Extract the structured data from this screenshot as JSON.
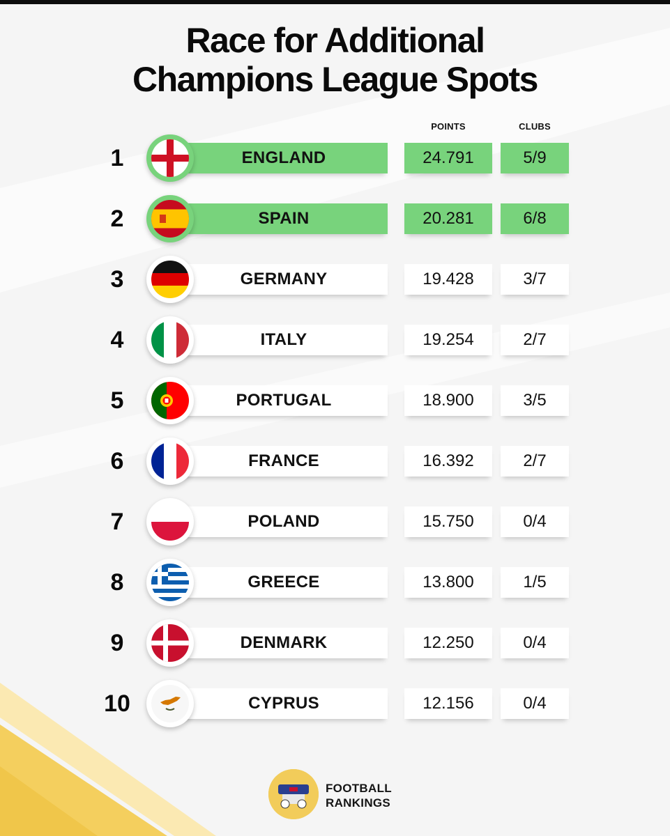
{
  "title_line1": "Race for Additional",
  "title_line2": "Champions League Spots",
  "columns": {
    "points": "POINTS",
    "clubs": "CLUBS"
  },
  "highlight_color": "#78d37c",
  "rows": [
    {
      "rank": "1",
      "country": "ENGLAND",
      "points": "24.791",
      "clubs": "5/9",
      "flag": "england-flag-icon",
      "highlighted": true
    },
    {
      "rank": "2",
      "country": "SPAIN",
      "points": "20.281",
      "clubs": "6/8",
      "flag": "spain-flag-icon",
      "highlighted": true
    },
    {
      "rank": "3",
      "country": "GERMANY",
      "points": "19.428",
      "clubs": "3/7",
      "flag": "germany-flag-icon",
      "highlighted": false
    },
    {
      "rank": "4",
      "country": "ITALY",
      "points": "19.254",
      "clubs": "2/7",
      "flag": "italy-flag-icon",
      "highlighted": false
    },
    {
      "rank": "5",
      "country": "PORTUGAL",
      "points": "18.900",
      "clubs": "3/5",
      "flag": "portugal-flag-icon",
      "highlighted": false
    },
    {
      "rank": "6",
      "country": "FRANCE",
      "points": "16.392",
      "clubs": "2/7",
      "flag": "france-flag-icon",
      "highlighted": false
    },
    {
      "rank": "7",
      "country": "POLAND",
      "points": "15.750",
      "clubs": "0/4",
      "flag": "poland-flag-icon",
      "highlighted": false
    },
    {
      "rank": "8",
      "country": "GREECE",
      "points": "13.800",
      "clubs": "1/5",
      "flag": "greece-flag-icon",
      "highlighted": false
    },
    {
      "rank": "9",
      "country": "DENMARK",
      "points": "12.250",
      "clubs": "0/4",
      "flag": "denmark-flag-icon",
      "highlighted": false
    },
    {
      "rank": "10",
      "country": "CYPRUS",
      "points": "12.156",
      "clubs": "0/4",
      "flag": "cyprus-flag-icon",
      "highlighted": false
    }
  ],
  "footer": {
    "brand_line1": "FOOTBALL",
    "brand_line2": "RANKINGS",
    "logo": "football-rankings-logo-icon"
  }
}
